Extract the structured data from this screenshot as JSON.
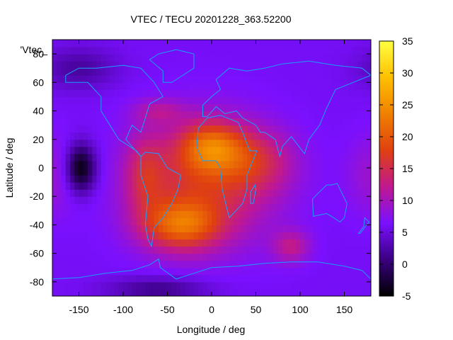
{
  "chart_data": {
    "type": "heatmap",
    "title": "VTEC / TECU 20201228_363.52200",
    "xlabel": "Longitude / deg",
    "ylabel": "Latitude / deg",
    "key_label": "'Vtec_",
    "xlim": [
      -180,
      180
    ],
    "ylim": [
      -90,
      90
    ],
    "x_ticks": [
      -150,
      -100,
      -50,
      0,
      50,
      100,
      150
    ],
    "y_ticks": [
      -80,
      -60,
      -40,
      -20,
      0,
      20,
      40,
      60,
      80
    ],
    "colorbar": {
      "range": [
        -5,
        35
      ],
      "ticks": [
        -5,
        0,
        5,
        10,
        15,
        20,
        25,
        30,
        35
      ]
    },
    "colormap": [
      "#000000",
      "#3a0080",
      "#7a10ff",
      "#c01890",
      "#e04010",
      "#f08000",
      "#ffc000",
      "#ffff40"
    ],
    "background_level": 6,
    "features": [
      {
        "lon": -10,
        "lat": -10,
        "amp": 10,
        "slon": 55,
        "slat": 30
      },
      {
        "lon": -35,
        "lat": -40,
        "amp": 12,
        "slon": 30,
        "slat": 12
      },
      {
        "lon": 0,
        "lat": 15,
        "amp": 11,
        "slon": 25,
        "slat": 12
      },
      {
        "lon": 50,
        "lat": 5,
        "amp": 6,
        "slon": 30,
        "slat": 15
      },
      {
        "lon": -75,
        "lat": -5,
        "amp": 6,
        "slon": 15,
        "slat": 20
      },
      {
        "lon": 90,
        "lat": -55,
        "amp": 6,
        "slon": 15,
        "slat": 8
      },
      {
        "lon": -60,
        "lat": 40,
        "amp": 4,
        "slon": 20,
        "slat": 6
      },
      {
        "lon": 180,
        "lat": -5,
        "amp": 3,
        "slon": 20,
        "slat": 20
      },
      {
        "lon": -148,
        "lat": 0,
        "amp": -11,
        "slon": 12,
        "slat": 12
      },
      {
        "lon": -150,
        "lat": 70,
        "amp": -4,
        "slon": 30,
        "slat": 10
      },
      {
        "lon": -60,
        "lat": -85,
        "amp": -5,
        "slon": 40,
        "slat": 6
      }
    ],
    "continents": [
      {
        "name": "North America",
        "points": [
          [
            -165,
            65
          ],
          [
            -150,
            70
          ],
          [
            -130,
            70
          ],
          [
            -100,
            72
          ],
          [
            -80,
            70
          ],
          [
            -65,
            60
          ],
          [
            -55,
            50
          ],
          [
            -70,
            45
          ],
          [
            -75,
            35
          ],
          [
            -80,
            25
          ],
          [
            -90,
            30
          ],
          [
            -97,
            20
          ],
          [
            -90,
            15
          ],
          [
            -80,
            8
          ],
          [
            -85,
            12
          ],
          [
            -105,
            20
          ],
          [
            -115,
            30
          ],
          [
            -125,
            40
          ],
          [
            -125,
            50
          ],
          [
            -140,
            60
          ],
          [
            -165,
            60
          ]
        ]
      },
      {
        "name": "Greenland",
        "points": [
          [
            -55,
            60
          ],
          [
            -45,
            60
          ],
          [
            -20,
            70
          ],
          [
            -20,
            80
          ],
          [
            -40,
            83
          ],
          [
            -60,
            80
          ],
          [
            -70,
            76
          ],
          [
            -55,
            68
          ]
        ]
      },
      {
        "name": "South America",
        "points": [
          [
            -80,
            8
          ],
          [
            -75,
            11
          ],
          [
            -60,
            10
          ],
          [
            -50,
            0
          ],
          [
            -35,
            -5
          ],
          [
            -38,
            -15
          ],
          [
            -45,
            -25
          ],
          [
            -55,
            -35
          ],
          [
            -65,
            -42
          ],
          [
            -68,
            -55
          ],
          [
            -72,
            -50
          ],
          [
            -75,
            -40
          ],
          [
            -72,
            -20
          ],
          [
            -80,
            -5
          ]
        ]
      },
      {
        "name": "Africa",
        "points": [
          [
            -17,
            15
          ],
          [
            -15,
            28
          ],
          [
            -5,
            35
          ],
          [
            10,
            37
          ],
          [
            30,
            32
          ],
          [
            35,
            25
          ],
          [
            43,
            12
          ],
          [
            51,
            12
          ],
          [
            40,
            -5
          ],
          [
            40,
            -15
          ],
          [
            35,
            -25
          ],
          [
            20,
            -35
          ],
          [
            17,
            -28
          ],
          [
            12,
            -15
          ],
          [
            10,
            0
          ],
          [
            5,
            5
          ],
          [
            -10,
            5
          ]
        ]
      },
      {
        "name": "Eurasia",
        "points": [
          [
            -10,
            36
          ],
          [
            -10,
            44
          ],
          [
            0,
            50
          ],
          [
            10,
            55
          ],
          [
            5,
            62
          ],
          [
            20,
            70
          ],
          [
            40,
            68
          ],
          [
            60,
            70
          ],
          [
            80,
            73
          ],
          [
            110,
            75
          ],
          [
            140,
            72
          ],
          [
            170,
            70
          ],
          [
            180,
            65
          ],
          [
            160,
            60
          ],
          [
            140,
            55
          ],
          [
            130,
            42
          ],
          [
            122,
            30
          ],
          [
            110,
            20
          ],
          [
            105,
            10
          ],
          [
            100,
            14
          ],
          [
            95,
            18
          ],
          [
            90,
            22
          ],
          [
            80,
            15
          ],
          [
            77,
            8
          ],
          [
            72,
            20
          ],
          [
            60,
            25
          ],
          [
            55,
            25
          ],
          [
            50,
            30
          ],
          [
            35,
            35
          ],
          [
            28,
            40
          ],
          [
            15,
            38
          ],
          [
            5,
            43
          ],
          [
            -5,
            36
          ]
        ]
      },
      {
        "name": "Madagascar",
        "points": [
          [
            44,
            -25
          ],
          [
            47,
            -25
          ],
          [
            50,
            -15
          ],
          [
            49,
            -12
          ],
          [
            44,
            -17
          ]
        ]
      },
      {
        "name": "Australia",
        "points": [
          [
            114,
            -22
          ],
          [
            115,
            -34
          ],
          [
            130,
            -32
          ],
          [
            138,
            -35
          ],
          [
            145,
            -38
          ],
          [
            150,
            -35
          ],
          [
            153,
            -25
          ],
          [
            145,
            -15
          ],
          [
            142,
            -11
          ],
          [
            135,
            -12
          ],
          [
            130,
            -12
          ],
          [
            120,
            -18
          ]
        ]
      },
      {
        "name": "New Zealand",
        "points": [
          [
            168,
            -46
          ],
          [
            174,
            -41
          ],
          [
            178,
            -38
          ],
          [
            173,
            -35
          ],
          [
            172,
            -41
          ],
          [
            166,
            -46
          ]
        ]
      },
      {
        "name": "Antarctica",
        "points": [
          [
            -180,
            -78
          ],
          [
            -150,
            -77
          ],
          [
            -120,
            -74
          ],
          [
            -90,
            -72
          ],
          [
            -70,
            -68
          ],
          [
            -60,
            -64
          ],
          [
            -58,
            -70
          ],
          [
            -40,
            -78
          ],
          [
            -20,
            -74
          ],
          [
            0,
            -70
          ],
          [
            30,
            -69
          ],
          [
            60,
            -67
          ],
          [
            90,
            -66
          ],
          [
            120,
            -66
          ],
          [
            150,
            -69
          ],
          [
            170,
            -72
          ],
          [
            180,
            -78
          ],
          [
            180,
            -90
          ],
          [
            -180,
            -90
          ]
        ]
      }
    ]
  }
}
